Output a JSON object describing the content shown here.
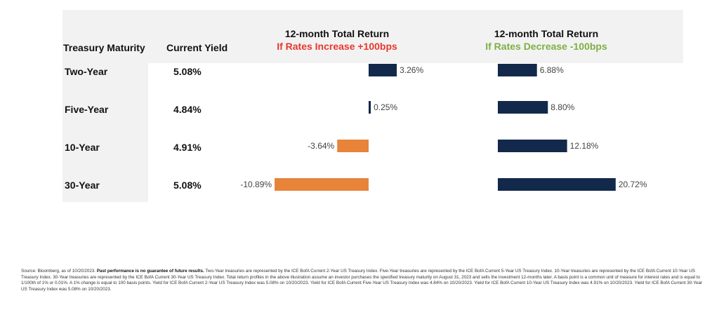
{
  "header": {
    "maturity_label": "Treasury Maturity",
    "yield_label": "Current Yield",
    "increase_title": "12-month Total Return",
    "increase_subtitle": "If Rates Increase +100bps",
    "decrease_title": "12-month Total Return",
    "decrease_subtitle": "If Rates Decrease -100bps"
  },
  "colors": {
    "increase_subtitle": "#e8372c",
    "decrease_subtitle": "#7db044",
    "positive_bar": "#13294b",
    "negative_bar": "#e8833a"
  },
  "rows": [
    {
      "maturity": "Two-Year",
      "yield": "5.08%"
    },
    {
      "maturity": "Five-Year",
      "yield": "4.84%"
    },
    {
      "maturity": "10-Year",
      "yield": "4.91%"
    },
    {
      "maturity": "30-Year",
      "yield": "5.08%"
    }
  ],
  "chart_data": [
    {
      "type": "bar",
      "title": "12-month Total Return",
      "subtitle": "If Rates Increase +100bps",
      "categories": [
        "Two-Year",
        "Five-Year",
        "10-Year",
        "30-Year"
      ],
      "values": [
        3.26,
        0.25,
        -3.64,
        -10.89
      ],
      "labels": [
        "3.26%",
        "0.25%",
        "-3.64%",
        "-10.89%"
      ],
      "orientation": "horizontal",
      "grid": false
    },
    {
      "type": "bar",
      "title": "12-month Total Return",
      "subtitle": "If Rates Decrease -100bps",
      "categories": [
        "Two-Year",
        "Five-Year",
        "10-Year",
        "30-Year"
      ],
      "values": [
        6.88,
        8.8,
        12.18,
        20.72
      ],
      "labels": [
        "6.88%",
        "8.80%",
        "12.18%",
        "20.72%"
      ],
      "orientation": "horizontal",
      "grid": false
    }
  ],
  "footnote": {
    "source": "Source: Bloomberg, as of 10/20/2023. ",
    "disclaimer": "Past performance is no guarantee of future results.",
    "body": " Two-Year treasuries are represented by the ICE BofA Current 2-Year US Treasury Index. Five-Year treasuries are represented by the ICE BofA Current 5-Year US Treasury Index. 10-Year treasuries are represented by the ICE BofA Current 10-Year US Treasury Index. 30-Year treasuries are represented by the ICE BofA Current 30-Year US Treasury Index. Total return profiles in the above illustration assume an investor purchases the specified treasury maturity on August 31, 2023 and sells the investment 12-months later. A basis point is a common unit of measure for interest rates and is equal to 1/100th of 1% or 0.01%. A 1% change is equal to 100 basis points. Yield for ICE BofA Current 2-Year US Treasury Index was 5.08% on 10/20/2023. Yield for ICE BofA Current Five-Year US Treasury Index was 4.84% on 10/20/2023. Yield for ICE BofA Current 10-Year US Treasury Index was 4.91% on 10/20/2023. Yield for ICE BofA Current 30-Year US Treasury Index was 5.08% on 10/20/2023."
  }
}
